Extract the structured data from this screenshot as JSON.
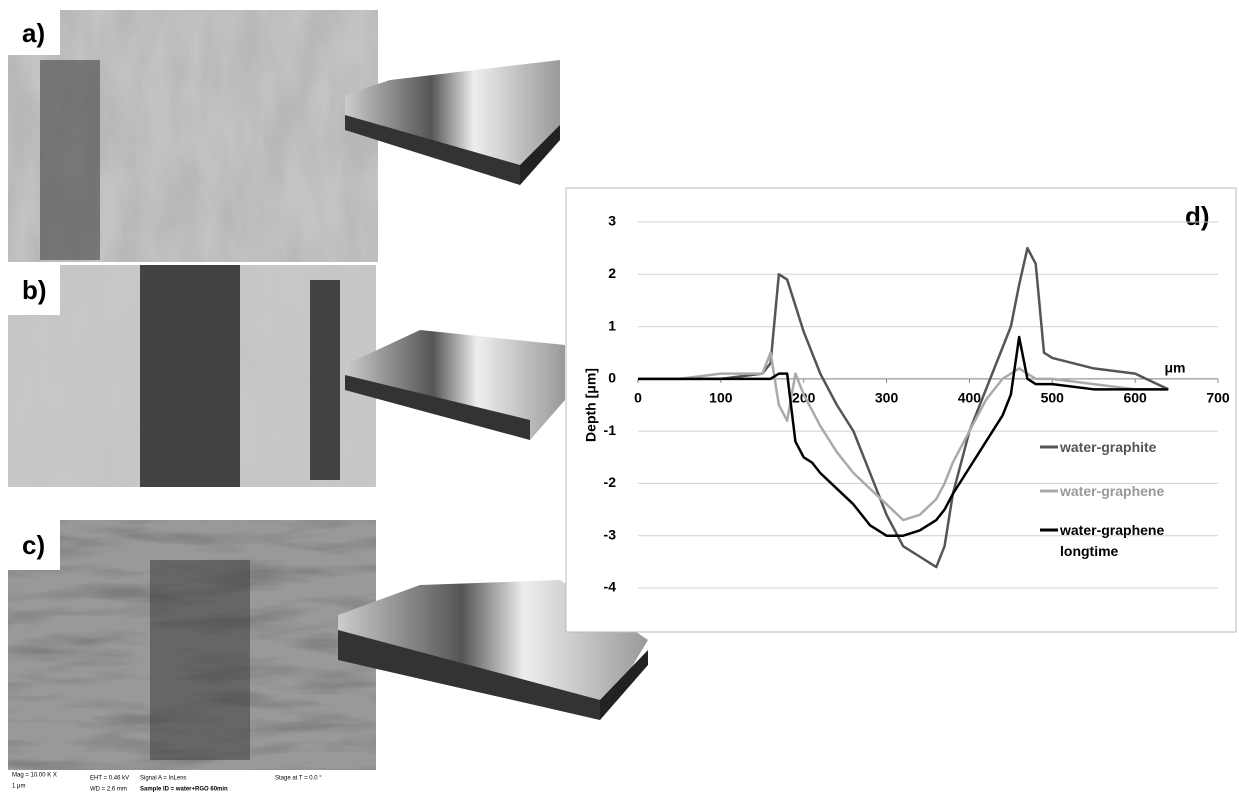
{
  "panels": {
    "a": {
      "label": "a)"
    },
    "b": {
      "label": "b)"
    },
    "c": {
      "label": "c)",
      "footer": [
        "Mag = 10.00 K X",
        "EHT = 0.46 kV",
        "Signal A = InLens",
        "Stage at T = 0.0 °",
        "WD = 2.6 mm",
        "Sample ID = water+RGO 60min",
        "1 μm"
      ]
    }
  },
  "chart_data": {
    "type": "line",
    "panel_label": "d)",
    "y_label": "Depth [μm]",
    "x_unit_label": "μm",
    "xlim": [
      0,
      700
    ],
    "xticks": [
      0,
      100,
      200,
      300,
      400,
      500,
      600,
      700
    ],
    "ylim": [
      -4,
      3
    ],
    "yticks": [
      -4,
      -3,
      -2,
      -1,
      0,
      1,
      2,
      3
    ],
    "grid": true,
    "x": [
      0,
      50,
      100,
      150,
      160,
      170,
      180,
      190,
      200,
      210,
      220,
      240,
      260,
      280,
      300,
      320,
      340,
      360,
      370,
      380,
      400,
      420,
      440,
      450,
      460,
      470,
      480,
      490,
      500,
      550,
      600,
      640
    ],
    "series": [
      {
        "name": "water-graphite",
        "color": "#555555",
        "values": [
          0,
          0,
          0,
          0.1,
          0.3,
          2.0,
          1.9,
          1.4,
          0.9,
          0.5,
          0.1,
          -0.5,
          -1.0,
          -1.8,
          -2.6,
          -3.2,
          -3.4,
          -3.6,
          -3.2,
          -2.2,
          -1.0,
          -0.2,
          0.6,
          1.0,
          1.8,
          2.5,
          2.2,
          0.5,
          0.4,
          0.2,
          0.1,
          -0.2
        ]
      },
      {
        "name": "water-graphene",
        "color": "#aaaaaa",
        "values": [
          0,
          0,
          0.1,
          0.1,
          0.5,
          -0.5,
          -0.8,
          0.1,
          -0.3,
          -0.6,
          -0.9,
          -1.4,
          -1.8,
          -2.1,
          -2.4,
          -2.7,
          -2.6,
          -2.3,
          -2.0,
          -1.6,
          -1.0,
          -0.4,
          0,
          0.1,
          0.2,
          0.1,
          0,
          0,
          0,
          -0.1,
          -0.2,
          -0.2
        ]
      },
      {
        "name": "water-graphene longtime",
        "color": "#000000",
        "values": [
          0,
          0,
          0,
          0,
          0,
          0.1,
          0.1,
          -1.2,
          -1.5,
          -1.6,
          -1.8,
          -2.1,
          -2.4,
          -2.8,
          -3.0,
          -3.0,
          -2.9,
          -2.7,
          -2.5,
          -2.2,
          -1.7,
          -1.2,
          -0.7,
          -0.3,
          0.8,
          0,
          -0.1,
          -0.1,
          -0.1,
          -0.2,
          -0.2,
          -0.2
        ]
      }
    ]
  }
}
